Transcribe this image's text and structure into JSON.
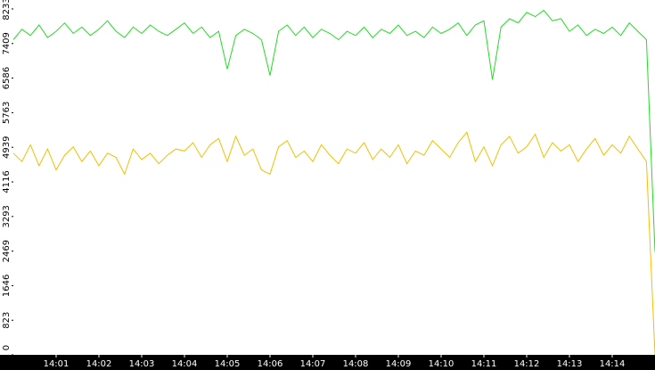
{
  "chart_data": {
    "type": "line",
    "x": [
      0,
      0.2,
      0.4,
      0.6,
      0.8,
      1,
      1.2,
      1.4,
      1.6,
      1.8,
      2,
      2.2,
      2.4,
      2.6,
      2.8,
      3,
      3.2,
      3.4,
      3.6,
      3.8,
      4,
      4.2,
      4.4,
      4.6,
      4.8,
      5,
      5.2,
      5.4,
      5.6,
      5.8,
      6,
      6.2,
      6.4,
      6.6,
      6.8,
      7,
      7.2,
      7.4,
      7.6,
      7.8,
      8,
      8.2,
      8.4,
      8.6,
      8.8,
      9,
      9.2,
      9.4,
      9.6,
      9.8,
      10,
      10.2,
      10.4,
      10.6,
      10.8,
      11,
      11.2,
      11.4,
      11.6,
      11.8,
      12,
      12.2,
      12.4,
      12.6,
      12.8,
      13,
      13.2,
      13.4,
      13.6,
      13.8,
      14,
      14.2,
      14.4,
      14.6,
      14.8,
      15
    ],
    "series": [
      {
        "color": "#22dd22",
        "values": [
          7500,
          7750,
          7600,
          7850,
          7550,
          7700,
          7900,
          7650,
          7800,
          7600,
          7750,
          7950,
          7700,
          7550,
          7800,
          7650,
          7850,
          7700,
          7600,
          7750,
          7900,
          7650,
          7800,
          7550,
          7700,
          6800,
          7600,
          7750,
          7650,
          7500,
          6650,
          7700,
          7850,
          7600,
          7800,
          7550,
          7750,
          7650,
          7500,
          7700,
          7600,
          7800,
          7550,
          7750,
          7650,
          7850,
          7600,
          7700,
          7550,
          7800,
          7650,
          7750,
          7900,
          7600,
          7850,
          7950,
          6550,
          7800,
          8000,
          7900,
          8150,
          8050,
          8200,
          7950,
          8000,
          7700,
          7850,
          7600,
          7750,
          7650,
          7800,
          7600,
          7900,
          7700,
          7500,
          2450
        ]
      },
      {
        "color": "#f0c000",
        "values": [
          4800,
          4600,
          5000,
          4500,
          4900,
          4400,
          4750,
          4950,
          4600,
          4850,
          4500,
          4800,
          4700,
          4300,
          4900,
          4650,
          4800,
          4550,
          4750,
          4900,
          4850,
          5050,
          4700,
          5000,
          5150,
          4600,
          5200,
          4750,
          4900,
          4400,
          4300,
          4950,
          5100,
          4700,
          4850,
          4600,
          5000,
          4750,
          4550,
          4900,
          4800,
          5050,
          4650,
          4900,
          4700,
          5000,
          4550,
          4850,
          4750,
          5100,
          4900,
          4700,
          5050,
          5300,
          4600,
          4950,
          4500,
          5000,
          5200,
          4800,
          4950,
          5250,
          4700,
          5050,
          4850,
          5000,
          4600,
          4900,
          5150,
          4750,
          5000,
          4800,
          5200,
          4900,
          4600,
          0
        ]
      }
    ],
    "xlim": [
      0,
      15
    ],
    "xticks": [
      {
        "value": 1,
        "label": "14:01"
      },
      {
        "value": 2,
        "label": "14:02"
      },
      {
        "value": 3,
        "label": "14:03"
      },
      {
        "value": 4,
        "label": "14:04"
      },
      {
        "value": 5,
        "label": "14:05"
      },
      {
        "value": 6,
        "label": "14:06"
      },
      {
        "value": 7,
        "label": "14:07"
      },
      {
        "value": 8,
        "label": "14:08"
      },
      {
        "value": 9,
        "label": "14:09"
      },
      {
        "value": 10,
        "label": "14:10"
      },
      {
        "value": 11,
        "label": "14:11"
      },
      {
        "value": 12,
        "label": "14:12"
      },
      {
        "value": 13,
        "label": "14:13"
      },
      {
        "value": 14,
        "label": "14:14"
      }
    ],
    "ylim": [
      0,
      8233
    ],
    "yticks": [
      0,
      823,
      1646,
      2469,
      3293,
      4116,
      4939,
      5763,
      6586,
      7409,
      8233
    ],
    "grid": false
  }
}
